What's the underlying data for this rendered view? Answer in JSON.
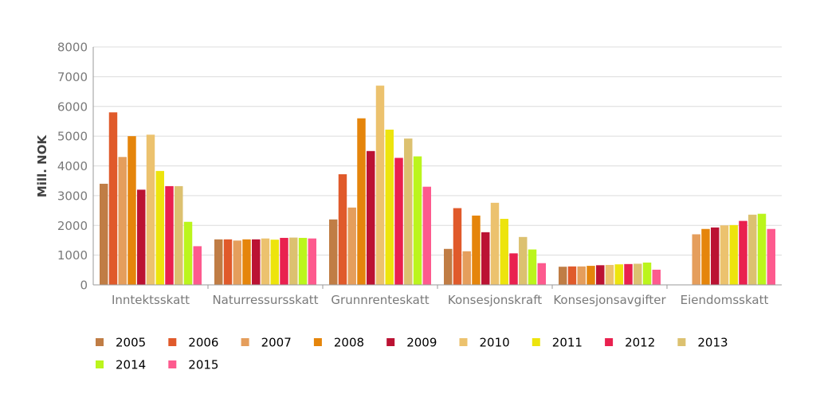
{
  "chart_data": {
    "type": "bar",
    "title": "",
    "xlabel": "",
    "ylabel": "Mill. NOK",
    "ylim": [
      0,
      8000
    ],
    "yticks": [
      0,
      1000,
      2000,
      3000,
      4000,
      5000,
      6000,
      7000,
      8000
    ],
    "grid": true,
    "legend_position": "bottom",
    "categories": [
      "Inntektsskatt",
      "Naturressursskatt",
      "Grunnrenteskatt",
      "Konsesjonskraft",
      "Konsesjonsavgifter",
      "Eiendomsskatt"
    ],
    "series": [
      {
        "name": "2005",
        "color": "#c07d45",
        "values": [
          3400,
          1530,
          2200,
          1210,
          610,
          0
        ]
      },
      {
        "name": "2006",
        "color": "#e05a2b",
        "values": [
          5800,
          1530,
          3720,
          2580,
          620,
          0
        ]
      },
      {
        "name": "2007",
        "color": "#e59e5c",
        "values": [
          4300,
          1490,
          2600,
          1130,
          620,
          1700
        ]
      },
      {
        "name": "2008",
        "color": "#e5850b",
        "values": [
          5000,
          1530,
          5600,
          2330,
          640,
          1880
        ]
      },
      {
        "name": "2009",
        "color": "#bb1233",
        "values": [
          3200,
          1530,
          4500,
          1770,
          660,
          1930
        ]
      },
      {
        "name": "2010",
        "color": "#ecc26e",
        "values": [
          5050,
          1560,
          6700,
          2760,
          670,
          2000
        ]
      },
      {
        "name": "2011",
        "color": "#ede40d",
        "values": [
          3830,
          1520,
          5220,
          2220,
          690,
          2010
        ]
      },
      {
        "name": "2012",
        "color": "#e9214f",
        "values": [
          3320,
          1580,
          4270,
          1060,
          700,
          2150
        ]
      },
      {
        "name": "2013",
        "color": "#dcc170",
        "values": [
          3320,
          1590,
          4920,
          1610,
          710,
          2360
        ]
      },
      {
        "name": "2014",
        "color": "#bbf51c",
        "values": [
          2120,
          1580,
          4320,
          1190,
          750,
          2390
        ]
      },
      {
        "name": "2015",
        "color": "#fd5a8e",
        "values": [
          1300,
          1560,
          3300,
          730,
          510,
          1880
        ]
      }
    ]
  }
}
